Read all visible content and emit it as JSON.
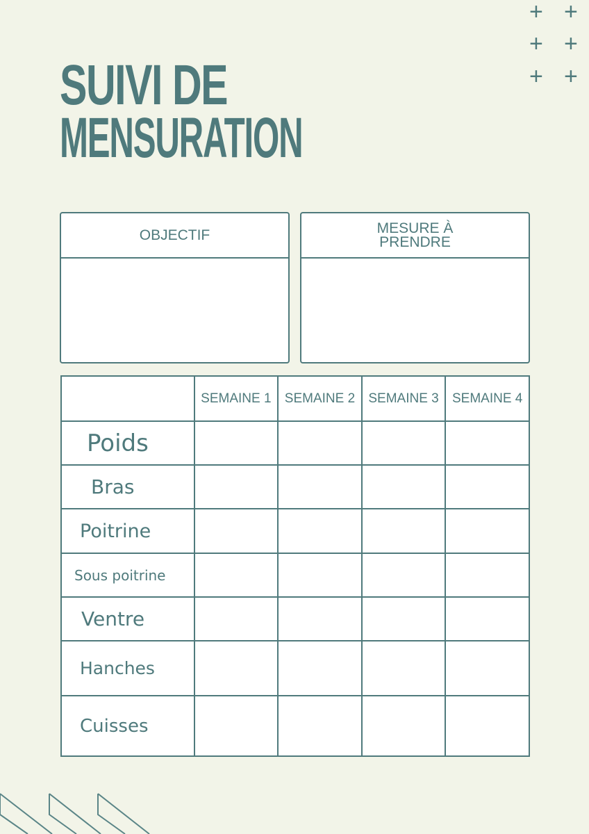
{
  "title": {
    "line1": "SUIVI DE",
    "line2": "MENSURATION"
  },
  "decor": {
    "plus_icon": "+"
  },
  "boxes": [
    {
      "label": "OBJECTIF"
    },
    {
      "label": "MESURE À PRENDRE"
    }
  ],
  "table": {
    "columns": [
      "SEMAINE 1",
      "SEMAINE 2",
      "SEMAINE 3",
      "SEMAINE 4"
    ],
    "rows": [
      "Poids",
      "Bras",
      "Poitrine",
      "Sous poitrine",
      "Ventre",
      "Hanches",
      "Cuisses"
    ]
  },
  "colors": {
    "background": "#f2f4e8",
    "accent": "#4f7a7c"
  }
}
